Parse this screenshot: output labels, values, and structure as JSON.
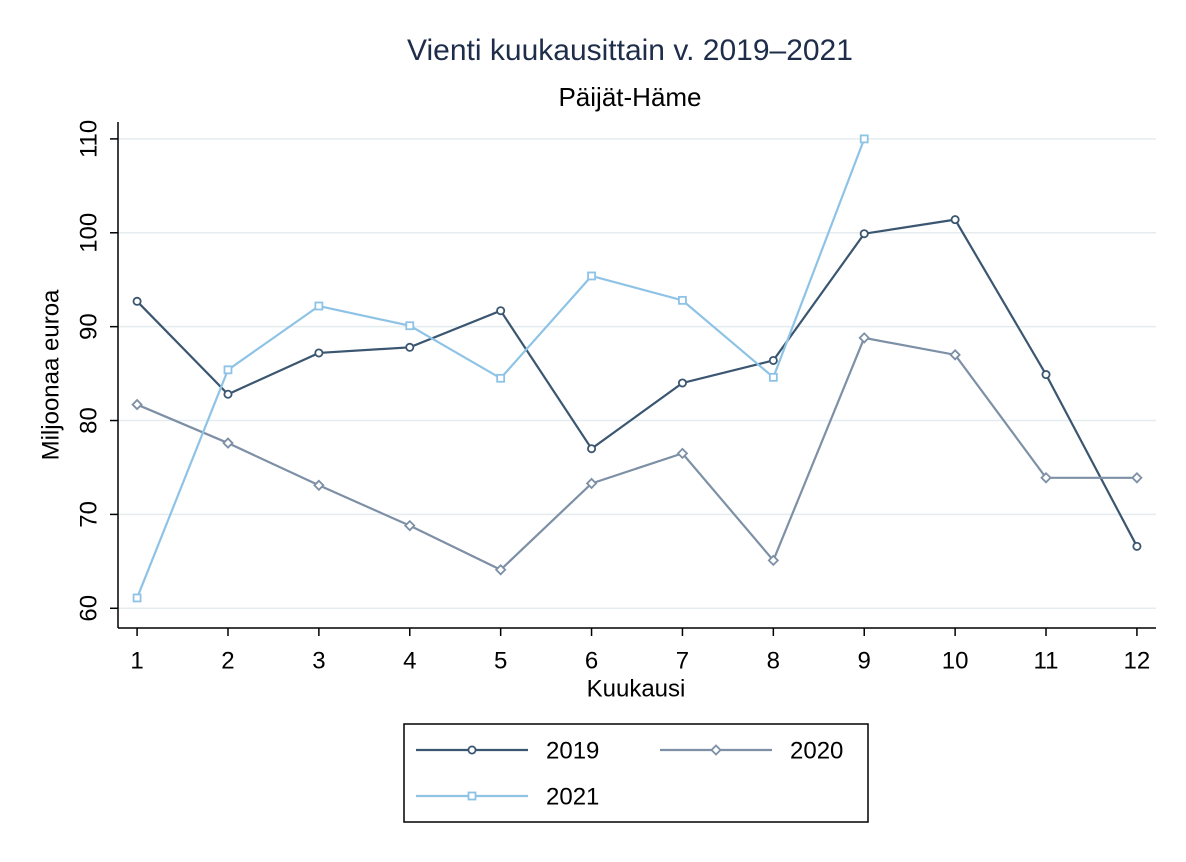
{
  "chart_data": {
    "type": "line",
    "title": "Vienti kuukausittain v. 2019–2021",
    "subtitle": "Päijät-Häme",
    "x_label": "Kuukausi",
    "y_label": "Miljoonaa euroa",
    "x": [
      1,
      2,
      3,
      4,
      5,
      6,
      7,
      8,
      9,
      10,
      11,
      12
    ],
    "xlim": [
      0.79,
      12.21
    ],
    "xticks": [
      1,
      2,
      3,
      4,
      5,
      6,
      7,
      8,
      9,
      10,
      11,
      12
    ],
    "ylim": [
      57.9,
      111.8
    ],
    "yticks": [
      60,
      70,
      80,
      90,
      100,
      110
    ],
    "grid": true,
    "legend": "bottom",
    "series": [
      {
        "name": "2019",
        "color": "#3b5670",
        "marker": "circle",
        "values": [
          92.7,
          82.8,
          87.2,
          87.8,
          91.7,
          77.0,
          84.0,
          86.4,
          99.9,
          101.4,
          84.9,
          66.6
        ]
      },
      {
        "name": "2020",
        "color": "#7d90a6",
        "marker": "diamond",
        "values": [
          81.7,
          77.6,
          73.1,
          68.8,
          64.1,
          73.3,
          76.5,
          65.1,
          88.8,
          87.0,
          73.9,
          73.9
        ]
      },
      {
        "name": "2021",
        "color": "#8ec3e6",
        "marker": "square",
        "values": [
          61.1,
          85.4,
          92.2,
          90.1,
          84.5,
          95.4,
          92.8,
          84.6,
          110.0,
          null,
          null,
          null
        ]
      }
    ]
  }
}
